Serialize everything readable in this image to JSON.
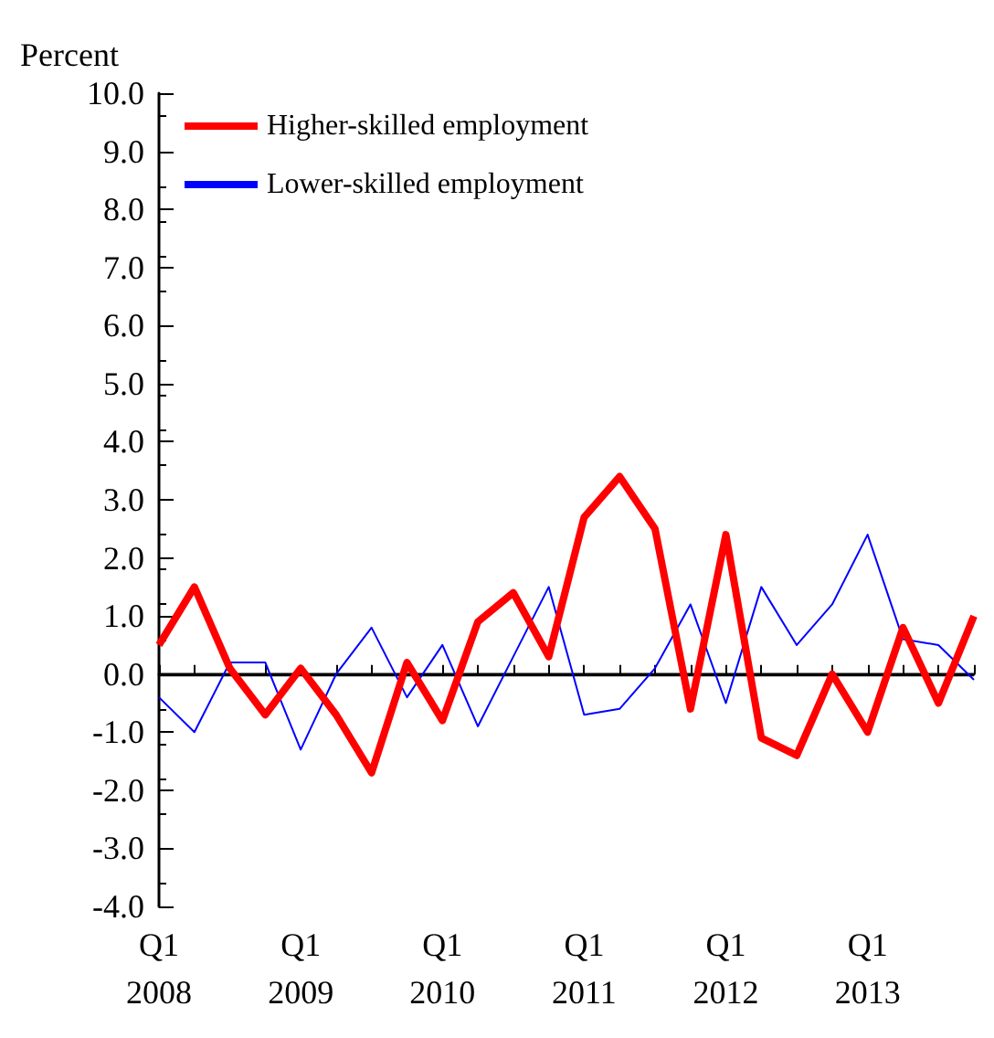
{
  "chart_data": {
    "type": "line",
    "ylabel": "Percent",
    "categories": [
      "Q1\n2008",
      null,
      null,
      null,
      "Q1\n2009",
      null,
      null,
      null,
      "Q1\n2010",
      null,
      null,
      null,
      "Q1\n2011",
      null,
      null,
      null,
      "Q1\n2012",
      null,
      null,
      null,
      "Q1\n2013",
      null,
      null,
      null
    ],
    "series": [
      {
        "name": "Higher-skilled employment",
        "color": "#ff0000",
        "values": [
          0.5,
          1.5,
          0.1,
          -0.7,
          0.1,
          -0.7,
          -1.7,
          0.2,
          -0.8,
          0.9,
          1.4,
          0.3,
          2.7,
          3.4,
          2.5,
          -0.6,
          2.4,
          -1.1,
          -1.4,
          0.0,
          -1.0,
          0.8,
          -0.5,
          1.0
        ]
      },
      {
        "name": "Lower-skilled employment",
        "color": "#0000ff",
        "values": [
          -0.4,
          -1.0,
          0.2,
          0.2,
          -1.3,
          0.0,
          0.8,
          -0.4,
          0.5,
          -0.9,
          0.3,
          1.5,
          -0.7,
          -0.6,
          0.1,
          1.2,
          -0.5,
          1.5,
          0.5,
          1.2,
          2.4,
          0.6,
          0.5,
          -0.1
        ]
      }
    ],
    "ylim": [
      -4,
      10
    ],
    "yticks": [
      {
        "value": -4,
        "label": "-4.0"
      },
      {
        "value": -3,
        "label": "-3.0"
      },
      {
        "value": -2,
        "label": "-2.0"
      },
      {
        "value": -1,
        "label": "-1.0"
      },
      {
        "value": 0,
        "label": "0.0"
      },
      {
        "value": 1,
        "label": "1.0"
      },
      {
        "value": 2,
        "label": "2.0"
      },
      {
        "value": 3,
        "label": "3.0"
      },
      {
        "value": 4,
        "label": "4.0"
      },
      {
        "value": 5,
        "label": "5.0"
      },
      {
        "value": 6,
        "label": "6.0"
      },
      {
        "value": 7,
        "label": "7.0"
      },
      {
        "value": 8,
        "label": "8.0"
      },
      {
        "value": 9,
        "label": "9.0"
      },
      {
        "value": 10,
        "label": "10.0"
      }
    ],
    "ref_lines": [
      {
        "axis": "y",
        "value": 0,
        "color": "#000000"
      }
    ],
    "legend": "top left",
    "grid": false,
    "marker": "none",
    "line_style": "solid"
  }
}
